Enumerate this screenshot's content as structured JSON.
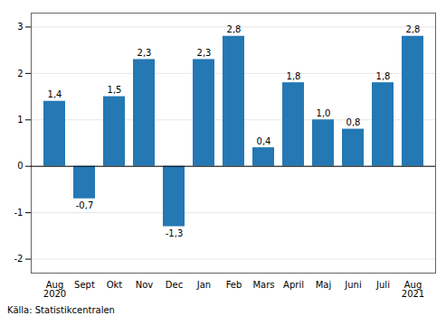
{
  "chart_data": {
    "type": "bar",
    "categories": [
      "Aug\n2020",
      "Sept",
      "Okt",
      "Nov",
      "Dec",
      "Jan",
      "Feb",
      "Mars",
      "April",
      "Maj",
      "Juni",
      "Juli",
      "Aug\n2021"
    ],
    "values": [
      1.4,
      -0.7,
      1.5,
      2.3,
      -1.3,
      2.3,
      2.8,
      0.4,
      1.8,
      1.0,
      0.8,
      1.8,
      2.8
    ],
    "value_labels": [
      "1,4",
      "-0,7",
      "1,5",
      "2,3",
      "-1,3",
      "2,3",
      "2,8",
      "0,4",
      "1,8",
      "1,0",
      "0,8",
      "1,8",
      "2,8"
    ],
    "data_labels": true,
    "color": "#2478b4",
    "ylim": [
      -2.3,
      3.3
    ],
    "yticks": [
      -2,
      -1,
      0,
      1,
      2,
      3
    ],
    "grid": true,
    "annotations": [
      "Källa: Statistikcentralen"
    ]
  }
}
